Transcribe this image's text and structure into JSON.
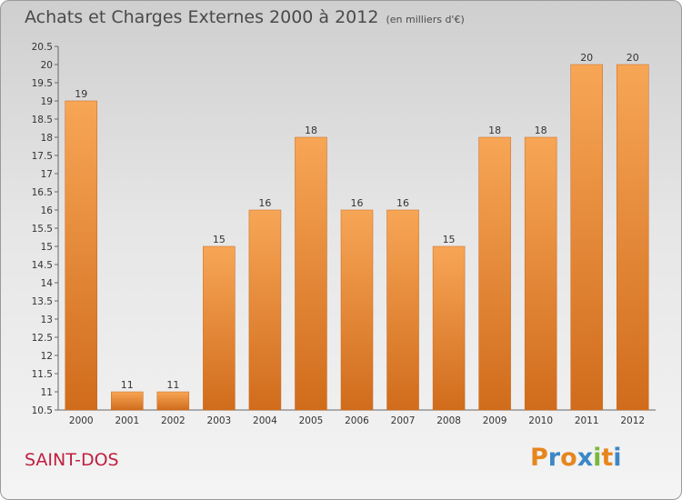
{
  "chart_title": "Achats et Charges Externes 2000 à 2012",
  "chart_subtitle": "(en milliers d'€)",
  "place_name": "SAINT-DOS",
  "logo_text": "Proxiti",
  "logo_colors": [
    "#e6861e",
    "#3c87c6",
    "#e6861e",
    "#3c87c6",
    "#79b83a",
    "#e6861e",
    "#3c87c6"
  ],
  "colors": {
    "bar_light": "#f7a656",
    "bar_dark": "#d06c1c",
    "place": "#c01f3f"
  },
  "chart_data": {
    "type": "bar",
    "title": "Achats et Charges Externes 2000 à 2012",
    "subtitle": "(en milliers d'€)",
    "categories": [
      "2000",
      "2001",
      "2002",
      "2003",
      "2004",
      "2005",
      "2006",
      "2007",
      "2008",
      "2009",
      "2010",
      "2011",
      "2012"
    ],
    "values": [
      19,
      11,
      11,
      15,
      16,
      18,
      16,
      16,
      15,
      18,
      18,
      20,
      20
    ],
    "data_labels": [
      "19",
      "11",
      "11",
      "15",
      "16",
      "18",
      "16",
      "16",
      "15",
      "18",
      "18",
      "20",
      "20"
    ],
    "ylim": [
      10.5,
      20.5
    ],
    "yticks": [
      "10.5",
      "11",
      "11.5",
      "12",
      "12.5",
      "13",
      "13.5",
      "14",
      "14.5",
      "15",
      "15.5",
      "16",
      "16.5",
      "17",
      "17.5",
      "18",
      "18.5",
      "19",
      "19.5",
      "20",
      "20.5"
    ],
    "grid": false,
    "xlabel": "",
    "ylabel": ""
  }
}
